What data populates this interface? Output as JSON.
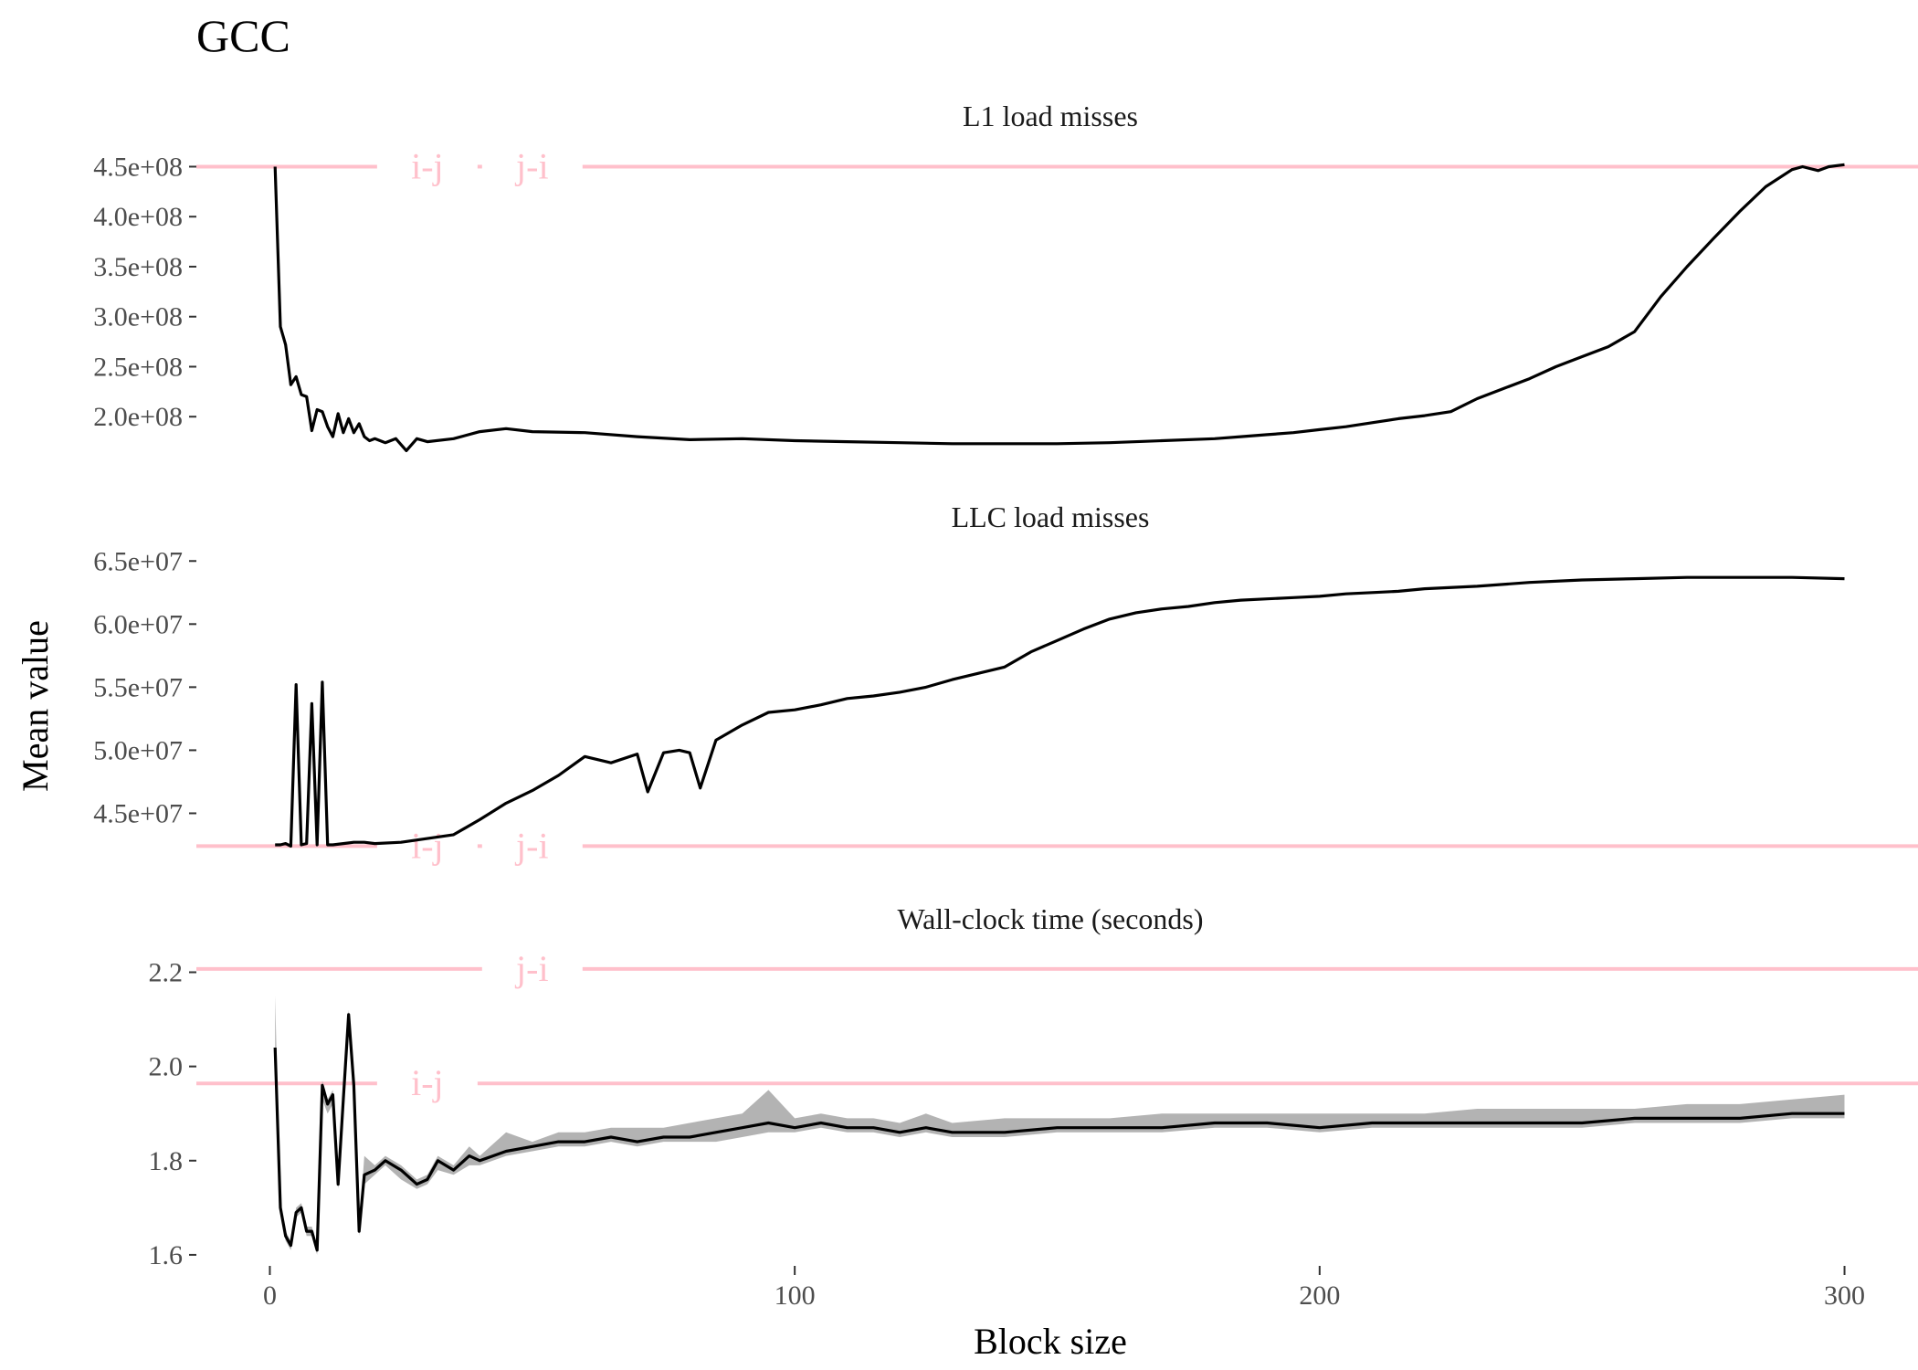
{
  "chart_data": {
    "type": "line",
    "title": "GCC",
    "xlabel": "Block size",
    "ylabel": "Mean value",
    "xlim": [
      -14,
      314
    ],
    "xticks": [
      0,
      100,
      200,
      300
    ],
    "xtick_labels": [
      "0",
      "100",
      "200",
      "300"
    ],
    "grid": false,
    "line_color": "#000000",
    "ribbon_color": "#999999",
    "reference_color": "#ffc0cb",
    "panels": [
      {
        "id": "l1",
        "title": "L1 load misses",
        "ylim": [
          158000000,
          458000000
        ],
        "yticks": [
          200000000,
          250000000,
          300000000,
          350000000,
          400000000,
          450000000
        ],
        "ytick_labels": [
          "2.0e+08",
          "2.5e+08",
          "3.0e+08",
          "3.5e+08",
          "4.0e+08",
          "4.5e+08"
        ],
        "reference_lines": [
          {
            "label": "i-j",
            "value": 450000000
          },
          {
            "label": "j-i",
            "value": 450000000
          }
        ],
        "ribbon": false,
        "series": {
          "x": [
            1,
            2,
            3,
            4,
            5,
            6,
            7,
            8,
            9,
            10,
            11,
            12,
            13,
            14,
            15,
            16,
            17,
            18,
            19,
            20,
            22,
            24,
            26,
            28,
            30,
            35,
            40,
            45,
            50,
            60,
            70,
            80,
            90,
            100,
            110,
            120,
            130,
            140,
            150,
            160,
            170,
            180,
            185,
            190,
            195,
            200,
            205,
            210,
            215,
            220,
            225,
            230,
            235,
            240,
            245,
            250,
            255,
            260,
            265,
            270,
            275,
            280,
            285,
            290,
            292,
            295,
            297,
            300
          ],
          "y": [
            450000000,
            290000000,
            272000000,
            232000000,
            240000000,
            222000000,
            220000000,
            186000000,
            207000000,
            205000000,
            190000000,
            180000000,
            203000000,
            184000000,
            198000000,
            184000000,
            193000000,
            180000000,
            176000000,
            178000000,
            174000000,
            178000000,
            166000000,
            178000000,
            175000000,
            178000000,
            185000000,
            188000000,
            185000000,
            184000000,
            180000000,
            177000000,
            178000000,
            176000000,
            175000000,
            174000000,
            173000000,
            173000000,
            173000000,
            174000000,
            176000000,
            178000000,
            180000000,
            182000000,
            184000000,
            187000000,
            190000000,
            194000000,
            198000000,
            201000000,
            205000000,
            218000000,
            228000000,
            238000000,
            250000000,
            260000000,
            270000000,
            285000000,
            320000000,
            350000000,
            378000000,
            405000000,
            430000000,
            447000000,
            450000000,
            446000000,
            450000000,
            452000000
          ]
        }
      },
      {
        "id": "llc",
        "title": "LLC load misses",
        "ylim": [
          42000000,
          65200000
        ],
        "yticks": [
          45000000,
          50000000,
          55000000,
          60000000,
          65000000
        ],
        "ytick_labels": [
          "4.5e+07",
          "5.0e+07",
          "5.5e+07",
          "6.0e+07",
          "6.5e+07"
        ],
        "reference_lines": [
          {
            "label": "i-j",
            "value": 42400000
          },
          {
            "label": "j-i",
            "value": 42400000
          }
        ],
        "ribbon": false,
        "series": {
          "x": [
            1,
            2,
            3,
            4,
            5,
            6,
            7,
            8,
            9,
            10,
            11,
            12,
            14,
            16,
            18,
            20,
            25,
            30,
            35,
            40,
            45,
            50,
            55,
            60,
            65,
            70,
            72,
            75,
            78,
            80,
            82,
            85,
            90,
            95,
            100,
            105,
            110,
            115,
            120,
            125,
            130,
            135,
            140,
            145,
            150,
            155,
            160,
            165,
            170,
            175,
            180,
            185,
            190,
            195,
            200,
            205,
            210,
            215,
            220,
            230,
            240,
            250,
            260,
            270,
            280,
            290,
            300
          ],
          "y": [
            42500000,
            42500000,
            42600000,
            42400000,
            55200000,
            42500000,
            42600000,
            53700000,
            42500000,
            55400000,
            42500000,
            42500000,
            42600000,
            42700000,
            42700000,
            42600000,
            42700000,
            43000000,
            43300000,
            44500000,
            45800000,
            46800000,
            48000000,
            49500000,
            49000000,
            49700000,
            46700000,
            49800000,
            50000000,
            49800000,
            47000000,
            50800000,
            52000000,
            53000000,
            53200000,
            53600000,
            54100000,
            54300000,
            54600000,
            55000000,
            55600000,
            56100000,
            56600000,
            57800000,
            58700000,
            59600000,
            60400000,
            60900000,
            61200000,
            61400000,
            61700000,
            61900000,
            62000000,
            62100000,
            62200000,
            62400000,
            62500000,
            62600000,
            62800000,
            63000000,
            63300000,
            63500000,
            63600000,
            63700000,
            63700000,
            63700000,
            63600000
          ]
        }
      },
      {
        "id": "wall",
        "title": "Wall-clock time (seconds)",
        "ylim": [
          1.595,
          2.225
        ],
        "yticks": [
          1.6,
          1.8,
          2.0,
          2.2
        ],
        "ytick_labels": [
          "1.6",
          "1.8",
          "2.0",
          "2.2"
        ],
        "reference_lines": [
          {
            "label": "j-i",
            "value": 2.207
          },
          {
            "label": "i-j",
            "value": 1.964
          }
        ],
        "ribbon": true,
        "series": {
          "x": [
            1,
            2,
            3,
            4,
            5,
            6,
            7,
            8,
            9,
            10,
            11,
            12,
            13,
            14,
            15,
            16,
            17,
            18,
            20,
            22,
            25,
            28,
            30,
            32,
            35,
            38,
            40,
            45,
            50,
            55,
            60,
            65,
            70,
            75,
            80,
            85,
            90,
            95,
            100,
            105,
            110,
            115,
            120,
            125,
            130,
            140,
            150,
            160,
            170,
            180,
            190,
            200,
            210,
            220,
            230,
            240,
            250,
            260,
            270,
            280,
            290,
            300
          ],
          "y": [
            2.04,
            1.7,
            1.64,
            1.62,
            1.69,
            1.7,
            1.65,
            1.65,
            1.61,
            1.96,
            1.92,
            1.94,
            1.75,
            1.93,
            2.11,
            1.96,
            1.65,
            1.77,
            1.78,
            1.8,
            1.78,
            1.75,
            1.76,
            1.8,
            1.78,
            1.81,
            1.8,
            1.82,
            1.83,
            1.84,
            1.84,
            1.85,
            1.84,
            1.85,
            1.85,
            1.86,
            1.87,
            1.88,
            1.87,
            1.88,
            1.87,
            1.87,
            1.86,
            1.87,
            1.86,
            1.86,
            1.87,
            1.87,
            1.87,
            1.88,
            1.88,
            1.87,
            1.88,
            1.88,
            1.88,
            1.88,
            1.88,
            1.89,
            1.89,
            1.89,
            1.9,
            1.9
          ],
          "ymin": [
            2.04,
            1.69,
            1.63,
            1.61,
            1.68,
            1.69,
            1.64,
            1.64,
            1.6,
            1.93,
            1.9,
            1.92,
            1.74,
            1.9,
            2.08,
            1.93,
            1.64,
            1.75,
            1.77,
            1.79,
            1.76,
            1.74,
            1.75,
            1.78,
            1.77,
            1.79,
            1.79,
            1.81,
            1.82,
            1.83,
            1.83,
            1.84,
            1.83,
            1.84,
            1.84,
            1.84,
            1.85,
            1.86,
            1.86,
            1.87,
            1.86,
            1.86,
            1.85,
            1.86,
            1.85,
            1.85,
            1.86,
            1.86,
            1.86,
            1.87,
            1.87,
            1.86,
            1.87,
            1.87,
            1.87,
            1.87,
            1.87,
            1.88,
            1.88,
            1.88,
            1.89,
            1.89
          ],
          "ymax": [
            2.15,
            1.71,
            1.65,
            1.63,
            1.7,
            1.71,
            1.66,
            1.66,
            1.62,
            1.97,
            1.93,
            1.95,
            1.76,
            1.95,
            2.12,
            1.98,
            1.66,
            1.81,
            1.79,
            1.81,
            1.79,
            1.76,
            1.77,
            1.81,
            1.79,
            1.83,
            1.81,
            1.86,
            1.84,
            1.86,
            1.86,
            1.87,
            1.87,
            1.87,
            1.88,
            1.89,
            1.9,
            1.95,
            1.89,
            1.9,
            1.89,
            1.89,
            1.88,
            1.9,
            1.88,
            1.89,
            1.89,
            1.89,
            1.9,
            1.9,
            1.9,
            1.9,
            1.9,
            1.9,
            1.91,
            1.91,
            1.91,
            1.91,
            1.92,
            1.92,
            1.93,
            1.94
          ]
        }
      }
    ]
  }
}
